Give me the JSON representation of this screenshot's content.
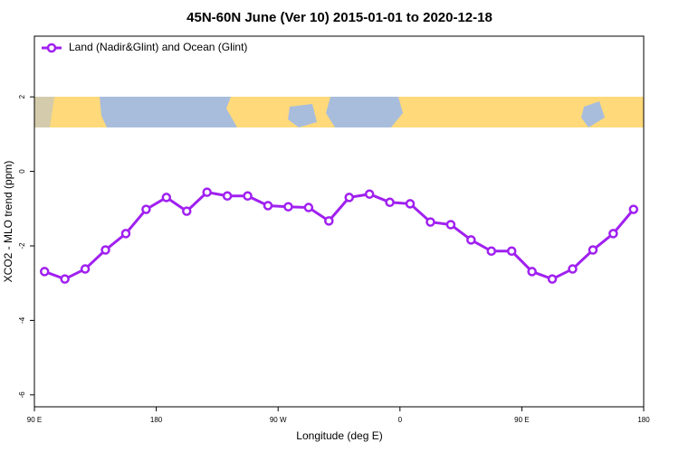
{
  "chart_data": {
    "type": "line",
    "title": "45N-60N June (Ver 10)   2015-01-01 to 2020-12-18",
    "x_label": "Longitude (deg E)",
    "y_label": "XCO2 - MLO trend (ppm)",
    "xlim": [
      90,
      540
    ],
    "ylim": [
      -6.32,
      3.63
    ],
    "xticks": [
      {
        "value": 90,
        "label": "90 E"
      },
      180,
      {
        "value": 270,
        "label": "90 W"
      },
      {
        "value": 360,
        "label": "0"
      },
      {
        "value": 450,
        "label": "90 E"
      },
      {
        "value": 540,
        "label": "180"
      }
    ],
    "yticks": [
      -6,
      -4,
      -2,
      0,
      2
    ],
    "legend": "top-left",
    "x": [
      97.5,
      112.5,
      127.5,
      142.5,
      157.5,
      172.5,
      187.5,
      202.5,
      217.5,
      232.5,
      247.5,
      262.5,
      277.5,
      292.5,
      307.5,
      322.5,
      337.5,
      352.5,
      367.5,
      382.5,
      397.5,
      412.5,
      427.5,
      442.5,
      457.5,
      472.5,
      487.5,
      502.5,
      517.5,
      532.5
    ],
    "series": [
      {
        "name": "Land (Nadir&Glint) and Ocean (Glint)",
        "color": "#a020f0",
        "values": [
          -2.69,
          -2.89,
          -2.62,
          -2.11,
          -1.67,
          -1.02,
          -0.7,
          -1.07,
          -0.56,
          -0.66,
          -0.66,
          -0.92,
          -0.95,
          -0.97,
          -1.33,
          -0.7,
          -0.61,
          -0.83,
          -0.87,
          -1.36,
          -1.43,
          -1.84,
          -2.14,
          -2.14,
          -2.69,
          -2.89,
          -2.62,
          -2.11,
          -1.67,
          -1.02
        ]
      }
    ]
  }
}
